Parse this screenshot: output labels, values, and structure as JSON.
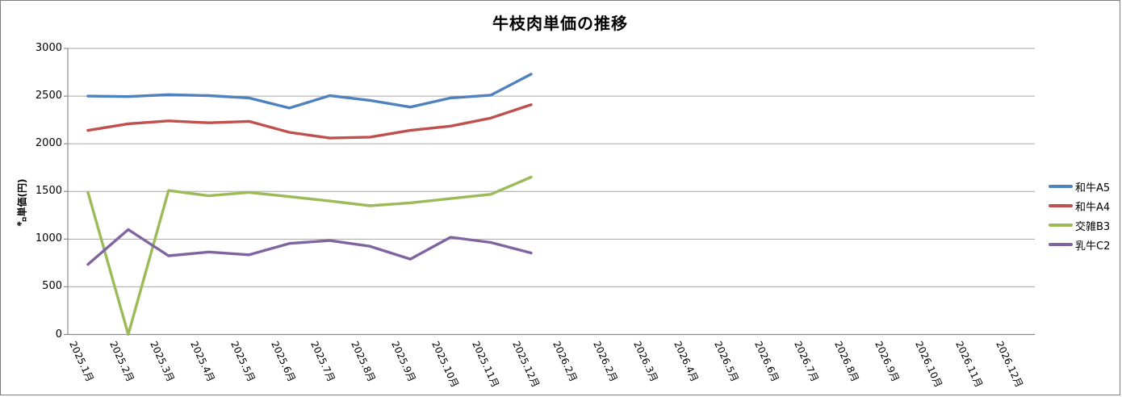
{
  "title": "牛枝肉単価の推移",
  "chart_data": {
    "type": "line",
    "title": "牛枝肉単価の推移",
    "xlabel": "",
    "ylabel": "㌔単価(円)",
    "ylim": [
      0,
      3000
    ],
    "yticks": [
      0,
      500,
      1000,
      1500,
      2000,
      2500,
      3000
    ],
    "grid": true,
    "legend_position": "right",
    "categories": [
      "2025.1月",
      "2025.2月",
      "2025.3月",
      "2025.4月",
      "2025.5月",
      "2025.6月",
      "2025.7月",
      "2025.8月",
      "2025.9月",
      "2025.10月",
      "2025.11月",
      "2025.12月",
      "2026.2月",
      "2026.2月",
      "2026.3月",
      "2026.4月",
      "2026.5月",
      "2026.6月",
      "2026.7月",
      "2026.8月",
      "2026.9月",
      "2026.10月",
      "2026.11月",
      "2026.12月"
    ],
    "series": [
      {
        "name": "和牛A5",
        "color": "#4F81BD",
        "values": [
          2500,
          2495,
          2515,
          2505,
          2480,
          2375,
          2505,
          2455,
          2385,
          2480,
          2510,
          2730
        ]
      },
      {
        "name": "和牛A4",
        "color": "#C0504D",
        "values": [
          2140,
          2210,
          2240,
          2220,
          2235,
          2120,
          2060,
          2070,
          2140,
          2185,
          2270,
          2410
        ]
      },
      {
        "name": "交雑B3",
        "color": "#9BBB59",
        "values": [
          1490,
          0,
          1510,
          1455,
          1490,
          1445,
          1400,
          1350,
          1380,
          1425,
          1470,
          1650
        ]
      },
      {
        "name": "乳牛C2",
        "color": "#8064A2",
        "values": [
          735,
          1100,
          825,
          865,
          835,
          955,
          985,
          925,
          790,
          1020,
          965,
          855
        ]
      }
    ],
    "axis_color": "#8C8C8C",
    "gridline_color": "#A6A6A6"
  }
}
